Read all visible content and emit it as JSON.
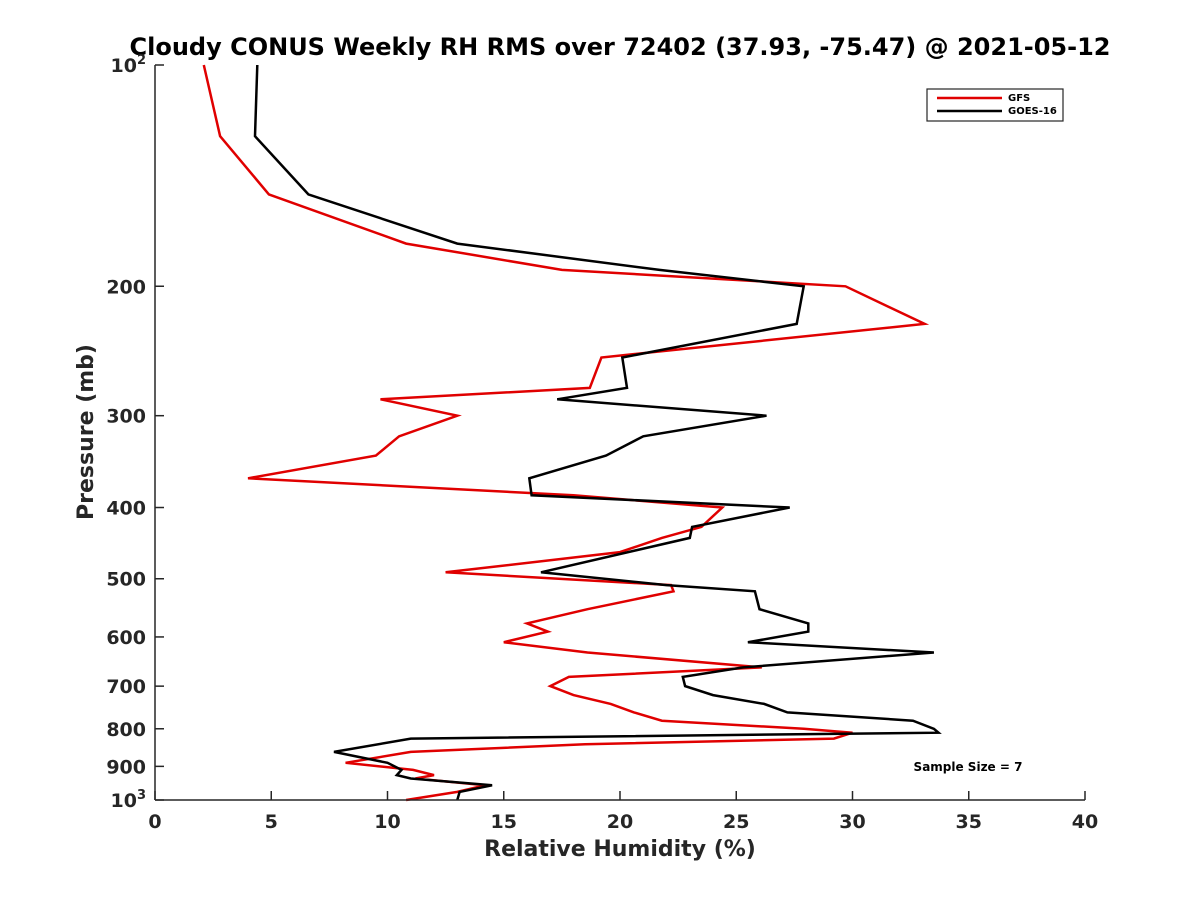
{
  "chart_data": {
    "type": "line",
    "title": "Cloudy CONUS Weekly RH RMS over 72402 (37.93, -75.47) @ 2021-05-12",
    "xlabel": "Relative Humidity (%)",
    "ylabel": "Pressure (mb)",
    "xlim": [
      0,
      40
    ],
    "ylim": [
      100,
      1000
    ],
    "y_scale": "log",
    "y_reversed": true,
    "x_ticks": [
      "0",
      "5",
      "10",
      "15",
      "20",
      "25",
      "30",
      "35",
      "40"
    ],
    "y_ticks": [
      {
        "value": 100,
        "label": "10",
        "sup": "2"
      },
      {
        "value": 200,
        "label": "200"
      },
      {
        "value": 300,
        "label": "300"
      },
      {
        "value": 400,
        "label": "400"
      },
      {
        "value": 500,
        "label": "500"
      },
      {
        "value": 600,
        "label": "600"
      },
      {
        "value": 700,
        "label": "700"
      },
      {
        "value": 800,
        "label": "800"
      },
      {
        "value": 900,
        "label": "900"
      },
      {
        "value": 1000,
        "label": "10",
        "sup": "3"
      }
    ],
    "grid": false,
    "legend_position": "top-right",
    "annotation": "Sample Size = 7",
    "series": [
      {
        "name": "GFS",
        "color": "#e00000",
        "points": [
          [
            2.1,
            100
          ],
          [
            2.8,
            125
          ],
          [
            4.9,
            150
          ],
          [
            10.8,
            175
          ],
          [
            17.5,
            190
          ],
          [
            29.7,
            200
          ],
          [
            33.1,
            225
          ],
          [
            19.2,
            250
          ],
          [
            18.7,
            275
          ],
          [
            9.7,
            285
          ],
          [
            13.0,
            300
          ],
          [
            10.5,
            320
          ],
          [
            9.5,
            340
          ],
          [
            4.0,
            365
          ],
          [
            18.0,
            385
          ],
          [
            24.4,
            400
          ],
          [
            23.5,
            425
          ],
          [
            21.8,
            440
          ],
          [
            20.0,
            460
          ],
          [
            12.5,
            490
          ],
          [
            22.2,
            510
          ],
          [
            22.3,
            520
          ],
          [
            18.6,
            550
          ],
          [
            16.0,
            575
          ],
          [
            16.9,
            590
          ],
          [
            15.0,
            610
          ],
          [
            18.6,
            630
          ],
          [
            26.1,
            660
          ],
          [
            17.8,
            680
          ],
          [
            17.0,
            700
          ],
          [
            18.0,
            720
          ],
          [
            19.6,
            740
          ],
          [
            20.6,
            760
          ],
          [
            21.8,
            780
          ],
          [
            27.9,
            800
          ],
          [
            30.0,
            810
          ],
          [
            29.2,
            825
          ],
          [
            18.5,
            840
          ],
          [
            11.0,
            860
          ],
          [
            8.2,
            890
          ],
          [
            11.1,
            910
          ],
          [
            12.0,
            925
          ],
          [
            11.2,
            935
          ],
          [
            14.2,
            955
          ],
          [
            13.0,
            975
          ],
          [
            10.8,
            1000
          ]
        ]
      },
      {
        "name": "GOES-16",
        "color": "#000000",
        "points": [
          [
            4.4,
            100
          ],
          [
            4.3,
            125
          ],
          [
            6.6,
            150
          ],
          [
            13.0,
            175
          ],
          [
            21.7,
            190
          ],
          [
            27.9,
            200
          ],
          [
            27.6,
            225
          ],
          [
            20.1,
            250
          ],
          [
            20.3,
            275
          ],
          [
            17.3,
            285
          ],
          [
            26.3,
            300
          ],
          [
            21.0,
            320
          ],
          [
            19.4,
            340
          ],
          [
            16.1,
            365
          ],
          [
            16.2,
            385
          ],
          [
            27.3,
            400
          ],
          [
            23.1,
            425
          ],
          [
            23.0,
            440
          ],
          [
            16.6,
            490
          ],
          [
            22.0,
            510
          ],
          [
            25.8,
            520
          ],
          [
            26.0,
            550
          ],
          [
            28.1,
            575
          ],
          [
            28.1,
            590
          ],
          [
            25.5,
            610
          ],
          [
            33.5,
            630
          ],
          [
            25.3,
            660
          ],
          [
            22.7,
            680
          ],
          [
            22.8,
            700
          ],
          [
            24.0,
            720
          ],
          [
            26.2,
            740
          ],
          [
            27.2,
            760
          ],
          [
            32.6,
            780
          ],
          [
            33.5,
            800
          ],
          [
            33.7,
            810
          ],
          [
            11.0,
            825
          ],
          [
            7.7,
            860
          ],
          [
            10.0,
            890
          ],
          [
            10.6,
            910
          ],
          [
            10.4,
            925
          ],
          [
            11.0,
            935
          ],
          [
            14.5,
            955
          ],
          [
            13.1,
            975
          ],
          [
            13.0,
            1000
          ]
        ]
      }
    ]
  }
}
